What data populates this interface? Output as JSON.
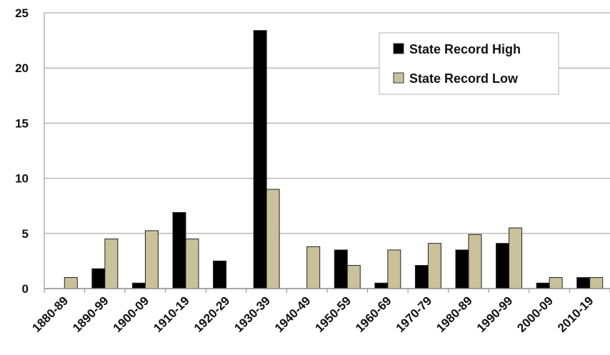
{
  "chart_data": {
    "type": "bar",
    "categories": [
      "1880-89",
      "1890-99",
      "1900-09",
      "1910-19",
      "1920-29",
      "1930-39",
      "1940-49",
      "1950-59",
      "1960-69",
      "1970-79",
      "1980-89",
      "1990-99",
      "2000-09",
      "2010-19"
    ],
    "series": [
      {
        "name": "State Record High",
        "color": "#000000",
        "values": [
          0,
          1.8,
          0.5,
          6.9,
          2.5,
          23.4,
          0,
          3.5,
          0.5,
          2.1,
          3.5,
          4.1,
          0.5,
          1.0
        ]
      },
      {
        "name": "State Record Low",
        "color": "#c9c19a",
        "values": [
          1.0,
          4.5,
          5.25,
          4.5,
          0,
          9.0,
          3.8,
          2.1,
          3.5,
          4.1,
          4.9,
          5.5,
          1.0,
          1.0
        ]
      }
    ],
    "yticks": [
      "0",
      "5",
      "10",
      "15",
      "20",
      "25"
    ],
    "ylim": [
      0,
      25
    ],
    "grid": true,
    "legend": "top-right",
    "title": "",
    "xlabel": "",
    "ylabel": ""
  }
}
